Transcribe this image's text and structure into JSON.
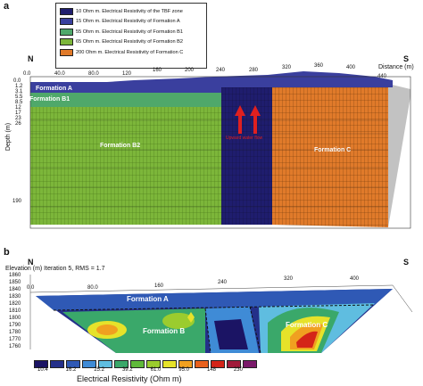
{
  "panel_a": {
    "label": "a",
    "north": "N",
    "south": "S",
    "x_label": "Distance (m)",
    "y_label": "Depth (m)",
    "x_ticks": [
      "0.0",
      "40.0",
      "80.0",
      "120",
      "160",
      "200",
      "240",
      "280",
      "320",
      "360",
      "400",
      "440"
    ],
    "y_ticks": [
      "0.0",
      "1.2",
      "3.1",
      "5.5",
      "8.5",
      "12",
      "17",
      "23",
      "26",
      "190"
    ],
    "legend": [
      {
        "color": "#1f1d6e",
        "text": "10 Ohm m. Electrical Resistivity of the TBF zone"
      },
      {
        "color": "#3a3f9e",
        "text": "15 Ohm m. Electrical Resistivity of Formation A"
      },
      {
        "color": "#4fa86a",
        "text": "55 Ohm m. Electrical Resistivity of Formation B1"
      },
      {
        "color": "#7cb63a",
        "text": "65 Ohm m. Electrical Resistivity of Formation B2"
      },
      {
        "color": "#e07a2a",
        "text": "200 Ohm m. Electrical Resistivity of Formation C"
      }
    ],
    "formations": {
      "a": "Formation A",
      "b1": "Formation B1",
      "b2": "Formation B2",
      "c": "Formation C"
    },
    "flow_label": "Upward water flow"
  },
  "panel_b": {
    "label": "b",
    "north": "N",
    "south": "S",
    "subtitle": "Elevation (m)  Iteration 5, RMS = 1.7",
    "y_ticks": [
      "1860",
      "1850",
      "1840",
      "1830",
      "1820",
      "1810",
      "1800",
      "1790",
      "1780",
      "1770",
      "1760"
    ],
    "x_ticks": [
      "0.0",
      "80.0",
      "160",
      "240",
      "320",
      "400"
    ],
    "formations": {
      "a": "Formation A",
      "b": "Formation B",
      "c": "Formation C"
    },
    "colorbar": {
      "title": "Electrical Resistivity (Ohm m)",
      "labels": [
        "10.4",
        "16.2",
        "25.2",
        "39.2",
        "61.0",
        "95.0",
        "148",
        "230"
      ],
      "colors": [
        "#1b1464",
        "#24308a",
        "#2f59b5",
        "#3f8bd6",
        "#5fbde0",
        "#3aa86a",
        "#5fb93a",
        "#9bcc2e",
        "#e6e22a",
        "#f0a020",
        "#e8601c",
        "#d42418",
        "#a01a3a",
        "#7a1a6a"
      ]
    }
  }
}
